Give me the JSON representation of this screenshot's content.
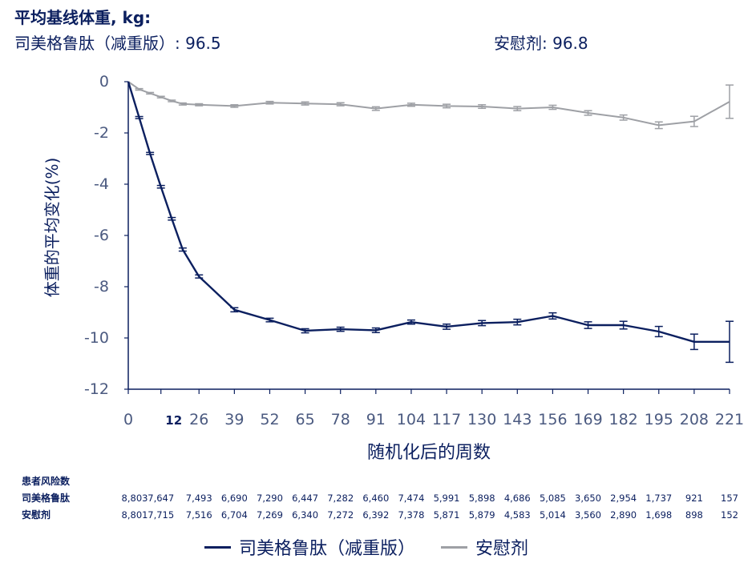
{
  "header": {
    "title": "平均基线体重, kg:",
    "semaglutide_baseline": "司美格鲁肽（减重版）: 96.5",
    "placebo_baseline": "安慰剂: 96.8"
  },
  "colors": {
    "semaglutide": "#0b1f5f",
    "placebo": "#9ea0a5",
    "text": "#0b1f5f"
  },
  "legend": {
    "semaglutide_label": "司美格鲁肽（减重版）",
    "placebo_label": "安慰剂"
  },
  "risk_table": {
    "title": "患者风险数",
    "rows": [
      {
        "label": "司美格鲁肽",
        "values": [
          "8,803",
          "7,647",
          "7,493",
          "6,690",
          "7,290",
          "6,447",
          "7,282",
          "6,460",
          "7,474",
          "5,991",
          "5,898",
          "4,686",
          "5,085",
          "3,650",
          "2,954",
          "1,737",
          "921",
          "157"
        ]
      },
      {
        "label": "安慰剂",
        "values": [
          "8,801",
          "7,715",
          "7,516",
          "6,704",
          "7,269",
          "6,340",
          "7,272",
          "6,392",
          "7,378",
          "5,871",
          "5,879",
          "4,583",
          "5,014",
          "3,560",
          "2,890",
          "1,698",
          "898",
          "152"
        ]
      }
    ]
  },
  "chart_data": {
    "type": "line",
    "title": "平均基线体重, kg:",
    "xlabel": "随机化后的周数",
    "ylabel": "体重的平均变化(%)",
    "x_ticks": [
      "0",
      "12",
      "26",
      "39",
      "52",
      "65",
      "78",
      "91",
      "104",
      "117",
      "130",
      "143",
      "156",
      "169",
      "182",
      "195",
      "208",
      "221"
    ],
    "y_ticks": [
      "0",
      "-2",
      "-4",
      "-6",
      "-8",
      "-10",
      "-12"
    ],
    "xlim": [
      0,
      221
    ],
    "ylim": [
      -12,
      0
    ],
    "grid": false,
    "legend_position": "bottom",
    "series": [
      {
        "name": "司美格鲁肽（减重版）",
        "color": "#0b1f5f",
        "x": [
          0,
          4,
          8,
          12,
          16,
          20,
          26,
          39,
          52,
          65,
          78,
          91,
          104,
          117,
          130,
          143,
          156,
          169,
          182,
          195,
          208,
          221
        ],
        "y": [
          0,
          -1.4,
          -2.8,
          -4.1,
          -5.35,
          -6.55,
          -7.6,
          -8.9,
          -9.3,
          -9.72,
          -9.66,
          -9.7,
          -9.38,
          -9.56,
          -9.42,
          -9.38,
          -9.14,
          -9.5,
          -9.5,
          -9.75,
          -10.15,
          -10.15
        ],
        "err": [
          0,
          0.04,
          0.04,
          0.05,
          0.05,
          0.06,
          0.06,
          0.08,
          0.07,
          0.08,
          0.08,
          0.09,
          0.08,
          0.1,
          0.1,
          0.11,
          0.12,
          0.13,
          0.15,
          0.2,
          0.3,
          0.8
        ]
      },
      {
        "name": "安慰剂",
        "color": "#9ea0a5",
        "x": [
          0,
          4,
          8,
          12,
          16,
          20,
          26,
          39,
          52,
          65,
          78,
          91,
          104,
          117,
          130,
          143,
          156,
          169,
          182,
          195,
          208,
          221
        ],
        "y": [
          0,
          -0.3,
          -0.45,
          -0.6,
          -0.75,
          -0.87,
          -0.9,
          -0.95,
          -0.82,
          -0.85,
          -0.88,
          -1.05,
          -0.9,
          -0.95,
          -0.97,
          -1.05,
          -1.0,
          -1.22,
          -1.4,
          -1.7,
          -1.55,
          -0.78
        ],
        "err": [
          0,
          0.03,
          0.03,
          0.03,
          0.03,
          0.04,
          0.04,
          0.05,
          0.05,
          0.06,
          0.06,
          0.07,
          0.06,
          0.07,
          0.07,
          0.08,
          0.08,
          0.09,
          0.1,
          0.13,
          0.2,
          0.65
        ]
      }
    ]
  }
}
